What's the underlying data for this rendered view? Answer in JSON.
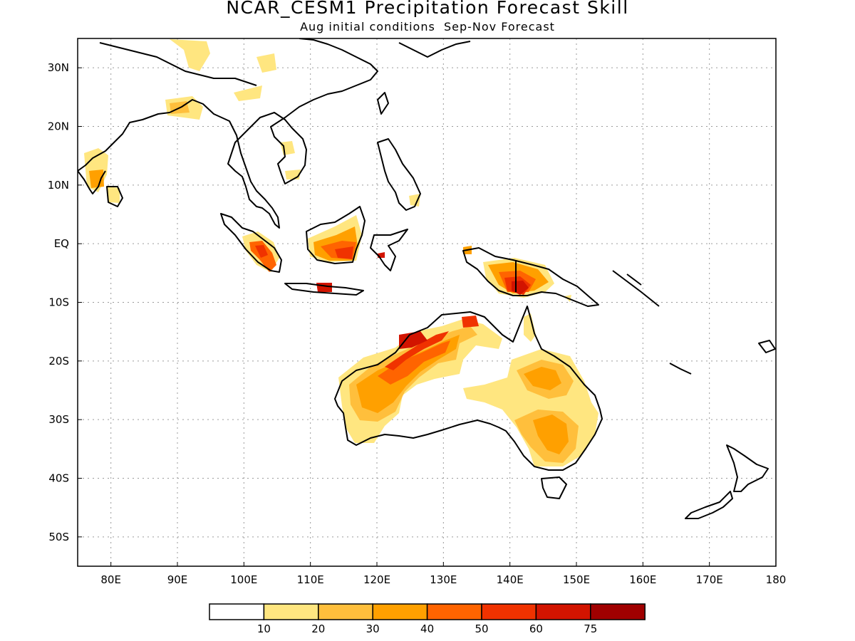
{
  "title": "NCAR_CESM1 Precipitation Forecast Skill",
  "subtitle": "Aug initial conditions  Sep-Nov Forecast",
  "map": {
    "lon_range": [
      75,
      180
    ],
    "lat_range": [
      -55,
      35
    ],
    "lon_ticks": [
      {
        "v": 80,
        "label": "80E"
      },
      {
        "v": 90,
        "label": "90E"
      },
      {
        "v": 100,
        "label": "100E"
      },
      {
        "v": 110,
        "label": "110E"
      },
      {
        "v": 120,
        "label": "120E"
      },
      {
        "v": 130,
        "label": "130E"
      },
      {
        "v": 140,
        "label": "140E"
      },
      {
        "v": 150,
        "label": "150E"
      },
      {
        "v": 160,
        "label": "160E"
      },
      {
        "v": 170,
        "label": "170E"
      },
      {
        "v": 180,
        "label": "180"
      }
    ],
    "lat_ticks": [
      {
        "v": 30,
        "label": "30N"
      },
      {
        "v": 20,
        "label": "20N"
      },
      {
        "v": 10,
        "label": "10N"
      },
      {
        "v": 0,
        "label": "EQ"
      },
      {
        "v": -10,
        "label": "10S"
      },
      {
        "v": -20,
        "label": "20S"
      },
      {
        "v": -30,
        "label": "30S"
      },
      {
        "v": -40,
        "label": "40S"
      },
      {
        "v": -50,
        "label": "50S"
      }
    ],
    "gridlines": true
  },
  "legend": {
    "colors": [
      "#ffffff",
      "#ffe680",
      "#ffbf3c",
      "#ffa000",
      "#ff6400",
      "#f03200",
      "#d21400",
      "#a00000"
    ],
    "labels": [
      "10",
      "20",
      "30",
      "40",
      "50",
      "60",
      "75"
    ]
  }
}
